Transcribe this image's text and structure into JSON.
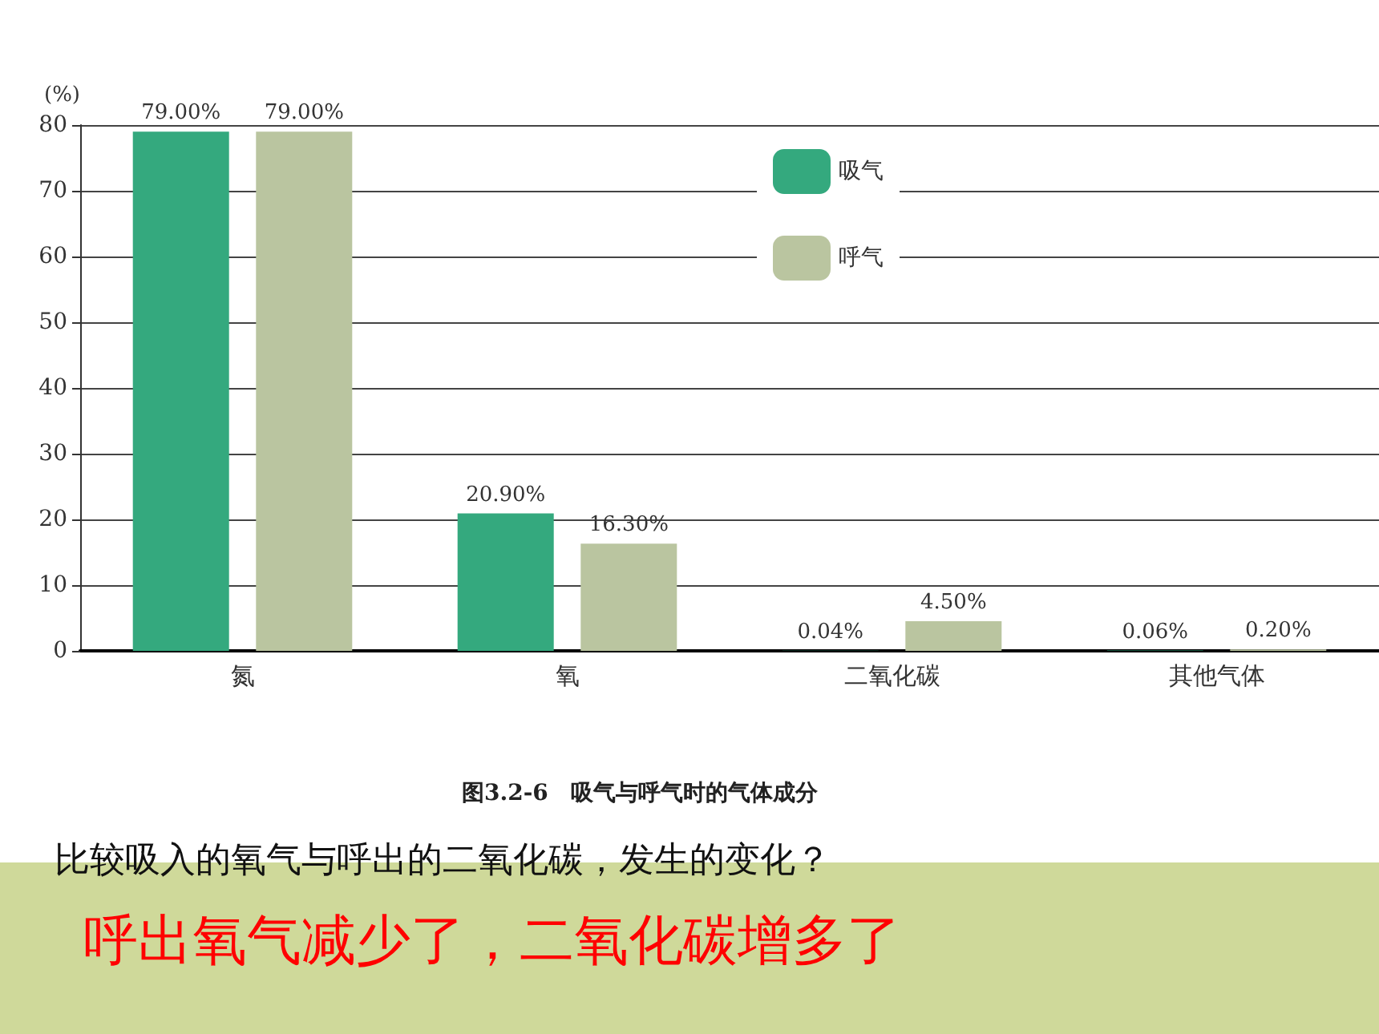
{
  "chart_data": {
    "type": "bar",
    "ylabel": "(%)",
    "categories": [
      "氮",
      "氧",
      "二氧化碳",
      "其他气体"
    ],
    "series": [
      {
        "name": "吸气",
        "color": "#34a97e",
        "values": [
          79,
          20.9,
          0.04,
          0.06
        ],
        "value_labels": [
          "79.00%",
          "20.90%",
          "0.04%",
          "0.06%"
        ]
      },
      {
        "name": "呼气",
        "color": "#bac5a0",
        "values": [
          79,
          16.3,
          4.5,
          0.2
        ],
        "value_labels": [
          "79.00%",
          "16.30%",
          "4.50%",
          "0.20%"
        ]
      }
    ],
    "ylim": [
      0,
      80
    ],
    "yticks": [
      0,
      10,
      20,
      30,
      40,
      50,
      60,
      70,
      80
    ],
    "grid": "y",
    "legend": "top right",
    "annotations": [
      "图3.2-6　吸气与呼气时的气体成分",
      "比较吸入的氧气与呼出的二氧化碳，发生的变化？",
      "呼出氧气减少了，二氧化碳增多了"
    ]
  }
}
